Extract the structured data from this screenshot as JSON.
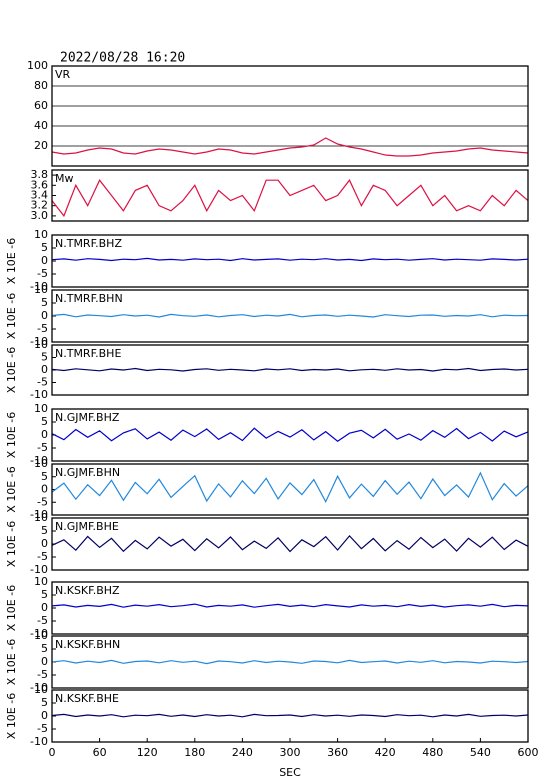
{
  "chart_data": [
    {
      "type": "line",
      "title": "2022/08/28 16:20",
      "label": "VR",
      "color": "#dd1144",
      "grid": true,
      "xlim": [
        0,
        600
      ],
      "ylim": [
        0,
        100
      ],
      "yticks": [
        20,
        40,
        60,
        80,
        100
      ],
      "x": [
        0,
        15,
        30,
        45,
        60,
        75,
        90,
        105,
        120,
        135,
        150,
        165,
        180,
        195,
        210,
        225,
        240,
        255,
        270,
        285,
        300,
        315,
        330,
        345,
        360,
        375,
        390,
        405,
        420,
        435,
        450,
        465,
        480,
        495,
        510,
        525,
        540,
        555,
        570,
        585,
        600
      ],
      "values": [
        14,
        12,
        13,
        16,
        18,
        17,
        13,
        12,
        15,
        17,
        16,
        14,
        12,
        14,
        17,
        16,
        13,
        12,
        14,
        16,
        18,
        19,
        21,
        28,
        22,
        19,
        17,
        14,
        11,
        10,
        10,
        11,
        13,
        14,
        15,
        17,
        18,
        16,
        15,
        14,
        13
      ]
    },
    {
      "type": "line",
      "label": "Mw",
      "color": "#dd1144",
      "grid": false,
      "xlim": [
        0,
        600
      ],
      "ylim": [
        2.9,
        3.9
      ],
      "yticks": [
        {
          "value": 3,
          "label": "3.0"
        },
        3.2,
        3.4,
        3.6,
        3.8
      ],
      "x": [
        0,
        15,
        30,
        45,
        60,
        75,
        90,
        105,
        120,
        135,
        150,
        165,
        180,
        195,
        210,
        225,
        240,
        255,
        270,
        285,
        300,
        315,
        330,
        345,
        360,
        375,
        390,
        405,
        420,
        435,
        450,
        465,
        480,
        495,
        510,
        525,
        540,
        555,
        570,
        585,
        600
      ],
      "values": [
        3.3,
        3.0,
        3.6,
        3.2,
        3.7,
        3.4,
        3.1,
        3.5,
        3.6,
        3.2,
        3.1,
        3.3,
        3.6,
        3.1,
        3.5,
        3.3,
        3.4,
        3.1,
        3.7,
        3.7,
        3.4,
        3.5,
        3.6,
        3.3,
        3.4,
        3.7,
        3.2,
        3.6,
        3.5,
        3.2,
        3.4,
        3.6,
        3.2,
        3.4,
        3.1,
        3.2,
        3.1,
        3.4,
        3.2,
        3.5,
        3.3
      ]
    },
    {
      "type": "line",
      "label": "N.TMRF.BHZ",
      "ylabel": "X 10E -6",
      "color": "#0000cc",
      "grid": false,
      "xlim": [
        0,
        600
      ],
      "ylim": [
        -10,
        10
      ],
      "yticks": [
        -10,
        -5,
        0,
        5,
        10
      ],
      "x": [
        0,
        15,
        30,
        45,
        60,
        75,
        90,
        105,
        120,
        135,
        150,
        165,
        180,
        195,
        210,
        225,
        240,
        255,
        270,
        285,
        300,
        315,
        330,
        345,
        360,
        375,
        390,
        405,
        420,
        435,
        450,
        465,
        480,
        495,
        510,
        525,
        540,
        555,
        570,
        585,
        600
      ],
      "values": [
        0.5,
        0.8,
        0.3,
        0.9,
        0.6,
        0.2,
        0.7,
        0.5,
        1.0,
        0.4,
        0.6,
        0.3,
        0.8,
        0.5,
        0.7,
        0.2,
        0.9,
        0.4,
        0.6,
        0.8,
        0.3,
        0.7,
        0.5,
        0.9,
        0.4,
        0.6,
        0.2,
        0.8,
        0.5,
        0.7,
        0.3,
        0.6,
        0.9,
        0.4,
        0.7,
        0.5,
        0.3,
        0.8,
        0.6,
        0.4,
        0.7
      ]
    },
    {
      "type": "line",
      "label": "N.TMRF.BHN",
      "ylabel": "X 10E -6",
      "color": "#2288dd",
      "grid": false,
      "xlim": [
        0,
        600
      ],
      "ylim": [
        -10,
        10
      ],
      "yticks": [
        -10,
        -5,
        0,
        5,
        10
      ],
      "x": [
        0,
        15,
        30,
        45,
        60,
        75,
        90,
        105,
        120,
        135,
        150,
        165,
        180,
        195,
        210,
        225,
        240,
        255,
        270,
        285,
        300,
        315,
        330,
        345,
        360,
        375,
        390,
        405,
        420,
        435,
        450,
        465,
        480,
        495,
        510,
        525,
        540,
        555,
        570,
        585,
        600
      ],
      "values": [
        0.2,
        0.6,
        -0.3,
        0.4,
        0.1,
        -0.2,
        0.5,
        0.0,
        0.3,
        -0.4,
        0.6,
        0.1,
        -0.1,
        0.4,
        -0.3,
        0.2,
        0.5,
        -0.2,
        0.3,
        0.0,
        0.6,
        -0.3,
        0.2,
        0.4,
        -0.1,
        0.3,
        0.0,
        -0.4,
        0.5,
        0.1,
        -0.2,
        0.3,
        0.4,
        -0.1,
        0.2,
        0.0,
        0.5,
        -0.3,
        0.3,
        0.1,
        0.2
      ]
    },
    {
      "type": "line",
      "label": "N.TMRF.BHE",
      "ylabel": "X 10E -6",
      "color": "#000066",
      "grid": false,
      "xlim": [
        0,
        600
      ],
      "ylim": [
        -10,
        10
      ],
      "yticks": [
        -10,
        -5,
        0,
        5,
        10
      ],
      "x": [
        0,
        15,
        30,
        45,
        60,
        75,
        90,
        105,
        120,
        135,
        150,
        165,
        180,
        195,
        210,
        225,
        240,
        255,
        270,
        285,
        300,
        315,
        330,
        345,
        360,
        375,
        390,
        405,
        420,
        435,
        450,
        465,
        480,
        495,
        510,
        525,
        540,
        555,
        570,
        585,
        600
      ],
      "values": [
        0.3,
        -0.2,
        0.5,
        0.1,
        -0.3,
        0.4,
        0.0,
        0.6,
        -0.2,
        0.3,
        0.1,
        -0.4,
        0.2,
        0.5,
        -0.1,
        0.3,
        0.0,
        -0.3,
        0.4,
        0.1,
        0.5,
        -0.2,
        0.2,
        0.0,
        0.4,
        -0.3,
        0.1,
        0.3,
        -0.1,
        0.5,
        0.0,
        0.2,
        -0.4,
        0.3,
        0.1,
        0.6,
        -0.2,
        0.2,
        0.4,
        0.0,
        0.3
      ]
    },
    {
      "type": "line",
      "label": "N.GJMF.BHZ",
      "ylabel": "X 10E -6",
      "color": "#0000cc",
      "grid": false,
      "xlim": [
        0,
        600
      ],
      "ylim": [
        -10,
        10
      ],
      "yticks": [
        -10,
        -5,
        0,
        5,
        10
      ],
      "x": [
        0,
        15,
        30,
        45,
        60,
        75,
        90,
        105,
        120,
        135,
        150,
        165,
        180,
        195,
        210,
        225,
        240,
        255,
        270,
        285,
        300,
        315,
        330,
        345,
        360,
        375,
        390,
        405,
        420,
        435,
        450,
        465,
        480,
        495,
        510,
        525,
        540,
        555,
        570,
        585,
        600
      ],
      "values": [
        0.5,
        -1.8,
        2.1,
        -0.9,
        1.6,
        -2.2,
        0.8,
        2.4,
        -1.5,
        1.1,
        -2.0,
        1.9,
        -0.6,
        2.3,
        -1.7,
        0.9,
        -2.1,
        2.6,
        -1.2,
        1.4,
        -0.8,
        2.0,
        -1.9,
        1.3,
        -2.4,
        0.7,
        1.8,
        -1.1,
        2.2,
        -1.6,
        0.4,
        -2.0,
        1.7,
        -0.9,
        2.5,
        -1.4,
        1.0,
        -2.3,
        1.5,
        -0.7,
        1.2
      ]
    },
    {
      "type": "line",
      "label": "N.GJMF.BHN",
      "ylabel": "X 10E -6",
      "color": "#2288dd",
      "grid": false,
      "xlim": [
        0,
        600
      ],
      "ylim": [
        -10,
        10
      ],
      "yticks": [
        -10,
        -5,
        0,
        5,
        10
      ],
      "x": [
        0,
        15,
        30,
        45,
        60,
        75,
        90,
        105,
        120,
        135,
        150,
        165,
        180,
        195,
        210,
        225,
        240,
        255,
        270,
        285,
        300,
        315,
        330,
        345,
        360,
        375,
        390,
        405,
        420,
        435,
        450,
        465,
        480,
        495,
        510,
        525,
        540,
        555,
        570,
        585,
        600
      ],
      "values": [
        -1.0,
        2.5,
        -3.8,
        1.9,
        -2.4,
        3.6,
        -4.2,
        2.8,
        -1.7,
        4.0,
        -3.1,
        1.2,
        5.4,
        -4.5,
        2.2,
        -2.9,
        3.4,
        -1.6,
        4.4,
        -3.7,
        2.6,
        -2.0,
        3.9,
        -4.8,
        5.2,
        -3.3,
        2.1,
        -2.7,
        3.5,
        -1.9,
        2.9,
        -3.6,
        4.1,
        -2.4,
        1.8,
        -3.0,
        6.5,
        -4.0,
        2.3,
        -2.6,
        1.5
      ]
    },
    {
      "type": "line",
      "label": "N.GJMF.BHE",
      "ylabel": "X 10E -6",
      "color": "#000066",
      "grid": false,
      "xlim": [
        0,
        600
      ],
      "ylim": [
        -10,
        10
      ],
      "yticks": [
        -10,
        -5,
        0,
        5,
        10
      ],
      "x": [
        0,
        15,
        30,
        45,
        60,
        75,
        90,
        105,
        120,
        135,
        150,
        165,
        180,
        195,
        210,
        225,
        240,
        255,
        270,
        285,
        300,
        315,
        330,
        345,
        360,
        375,
        390,
        405,
        420,
        435,
        450,
        465,
        480,
        495,
        510,
        525,
        540,
        555,
        570,
        585,
        600
      ],
      "values": [
        -0.5,
        1.6,
        -2.4,
        2.9,
        -1.3,
        2.2,
        -2.8,
        1.4,
        -1.9,
        2.6,
        -0.8,
        1.8,
        -2.5,
        2.0,
        -1.5,
        2.7,
        -2.2,
        1.1,
        -1.7,
        2.4,
        -2.9,
        1.6,
        -1.0,
        2.8,
        -2.3,
        3.1,
        -1.8,
        2.1,
        -2.6,
        1.3,
        -2.0,
        2.5,
        -1.4,
        1.9,
        -2.7,
        2.2,
        -1.2,
        2.6,
        -2.1,
        1.5,
        -0.9
      ]
    },
    {
      "type": "line",
      "label": "N.KSKF.BHZ",
      "ylabel": "X 10E -6",
      "color": "#0000cc",
      "grid": false,
      "xlim": [
        0,
        600
      ],
      "ylim": [
        -10,
        10
      ],
      "yticks": [
        -10,
        -5,
        0,
        5,
        10
      ],
      "x": [
        0,
        15,
        30,
        45,
        60,
        75,
        90,
        105,
        120,
        135,
        150,
        165,
        180,
        195,
        210,
        225,
        240,
        255,
        270,
        285,
        300,
        315,
        330,
        345,
        360,
        375,
        390,
        405,
        420,
        435,
        450,
        465,
        480,
        495,
        510,
        525,
        540,
        555,
        570,
        585,
        600
      ],
      "values": [
        0.8,
        1.2,
        0.4,
        1.0,
        0.6,
        1.4,
        0.3,
        1.1,
        0.7,
        1.3,
        0.5,
        0.9,
        1.5,
        0.4,
        1.0,
        0.7,
        1.2,
        0.3,
        0.9,
        1.4,
        0.6,
        1.1,
        0.5,
        1.3,
        0.8,
        0.4,
        1.2,
        0.7,
        1.0,
        0.5,
        1.3,
        0.6,
        1.1,
        0.4,
        0.9,
        1.2,
        0.7,
        1.4,
        0.5,
        1.0,
        0.8
      ]
    },
    {
      "type": "line",
      "label": "N.KSKF.BHN",
      "ylabel": "X 10E -6",
      "color": "#2288dd",
      "grid": false,
      "xlim": [
        0,
        600
      ],
      "ylim": [
        -10,
        10
      ],
      "yticks": [
        -10,
        -5,
        0,
        5,
        10
      ],
      "x": [
        0,
        15,
        30,
        45,
        60,
        75,
        90,
        105,
        120,
        135,
        150,
        165,
        180,
        195,
        210,
        225,
        240,
        255,
        270,
        285,
        300,
        315,
        330,
        345,
        360,
        375,
        390,
        405,
        420,
        435,
        450,
        465,
        480,
        495,
        510,
        525,
        540,
        555,
        570,
        585,
        600
      ],
      "values": [
        0.0,
        0.5,
        -0.4,
        0.3,
        -0.2,
        0.6,
        -0.5,
        0.2,
        0.4,
        -0.3,
        0.5,
        -0.1,
        0.3,
        -0.6,
        0.4,
        0.1,
        -0.4,
        0.5,
        -0.2,
        0.3,
        0.0,
        -0.5,
        0.4,
        0.2,
        -0.3,
        0.6,
        -0.2,
        0.1,
        0.4,
        -0.4,
        0.3,
        -0.1,
        0.5,
        -0.3,
        0.2,
        0.0,
        -0.4,
        0.3,
        0.1,
        -0.2,
        0.2
      ]
    },
    {
      "type": "line",
      "label": "N.KSKF.BHE",
      "ylabel": "X 10E -6",
      "xlabel": "SEC",
      "color": "#000066",
      "grid": false,
      "xlim": [
        0,
        600
      ],
      "ylim": [
        -10,
        10
      ],
      "yticks": [
        -10,
        -5,
        0,
        5,
        10
      ],
      "xticks": [
        0,
        60,
        120,
        180,
        240,
        300,
        360,
        420,
        480,
        540,
        600
      ],
      "x": [
        0,
        15,
        30,
        45,
        60,
        75,
        90,
        105,
        120,
        135,
        150,
        165,
        180,
        195,
        210,
        225,
        240,
        255,
        270,
        285,
        300,
        315,
        330,
        345,
        360,
        375,
        390,
        405,
        420,
        435,
        450,
        465,
        480,
        495,
        510,
        525,
        540,
        555,
        570,
        585,
        600
      ],
      "values": [
        0.2,
        0.6,
        -0.2,
        0.4,
        0.0,
        0.5,
        -0.3,
        0.3,
        0.1,
        0.6,
        -0.1,
        0.4,
        -0.2,
        0.5,
        0.0,
        0.3,
        -0.3,
        0.6,
        0.1,
        0.2,
        0.4,
        -0.2,
        0.5,
        0.0,
        0.3,
        -0.1,
        0.4,
        0.2,
        -0.2,
        0.5,
        0.1,
        0.3,
        -0.3,
        0.4,
        0.0,
        0.6,
        -0.1,
        0.2,
        0.3,
        0.0,
        0.4
      ]
    }
  ]
}
